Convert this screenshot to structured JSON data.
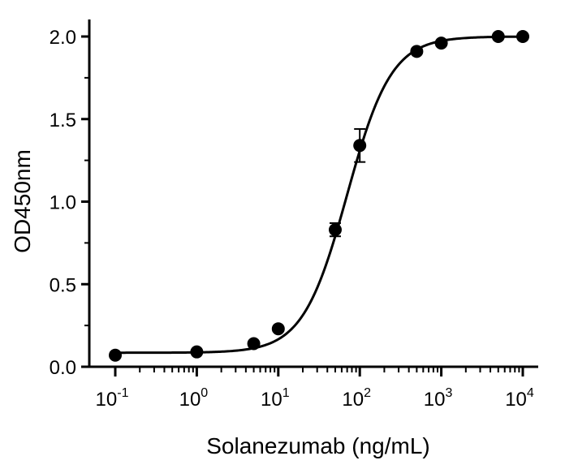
{
  "chart_data": {
    "type": "scatter",
    "xlabel": "Solanezumab (ng/mL)",
    "ylabel": "OD450nm",
    "x_scale": "log10",
    "xlim": [
      0.1,
      10000
    ],
    "ylim": [
      0.0,
      2.0
    ],
    "x_tick_labels": [
      {
        "base": "10",
        "exp": "-1"
      },
      {
        "base": "10",
        "exp": "0"
      },
      {
        "base": "10",
        "exp": "1"
      },
      {
        "base": "10",
        "exp": "2"
      },
      {
        "base": "10",
        "exp": "3"
      },
      {
        "base": "10",
        "exp": "4"
      }
    ],
    "y_ticks": [
      0.0,
      0.5,
      1.0,
      1.5,
      2.0
    ],
    "y_tick_labels": [
      "0.0",
      "0.5",
      "1.0",
      "1.5",
      "2.0"
    ],
    "series": [
      {
        "points": [
          {
            "x": 0.1,
            "y": 0.07,
            "err": 0.01
          },
          {
            "x": 1,
            "y": 0.09,
            "err": 0.01
          },
          {
            "x": 5,
            "y": 0.14,
            "err": 0.01
          },
          {
            "x": 10,
            "y": 0.23,
            "err": 0.01
          },
          {
            "x": 50,
            "y": 0.83,
            "err": 0.04
          },
          {
            "x": 100,
            "y": 1.34,
            "err": 0.1
          },
          {
            "x": 500,
            "y": 1.91,
            "err": 0.01
          },
          {
            "x": 1000,
            "y": 1.96,
            "err": 0.01
          },
          {
            "x": 5000,
            "y": 2.0,
            "err": 0.01
          },
          {
            "x": 10000,
            "y": 2.0,
            "err": 0.01
          }
        ]
      }
    ],
    "fit_curve": {
      "model": "4PL",
      "bottom": 0.085,
      "top": 2.0,
      "ec50": 70,
      "hill": 1.6
    },
    "grid": false,
    "colors": {
      "marker": "#000000",
      "line": "#000000",
      "axis": "#000000"
    }
  }
}
